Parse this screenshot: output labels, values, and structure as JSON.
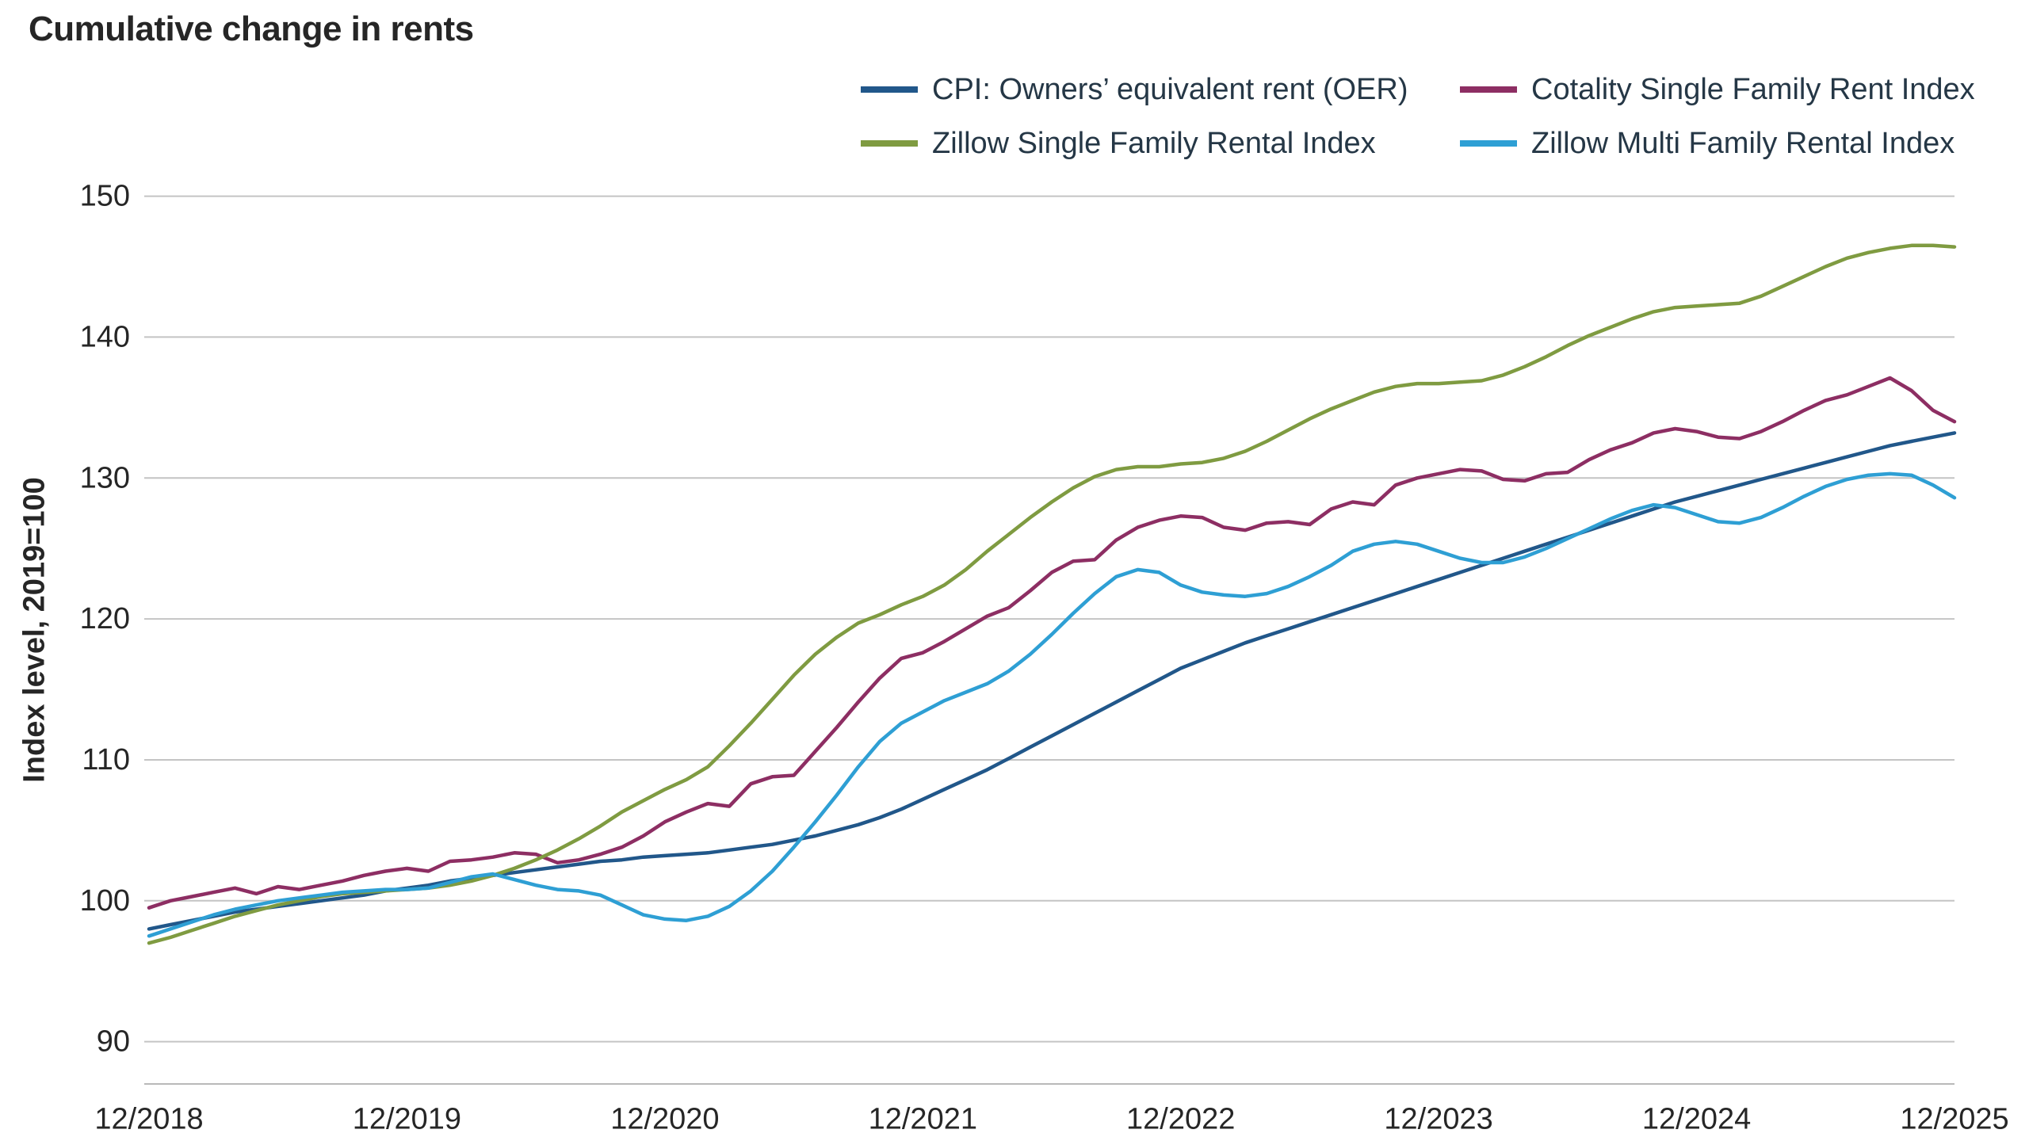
{
  "title": "Cumulative change in rents",
  "y_axis_label": "Index level, 2019=100",
  "colors": {
    "background": "#ffffff",
    "text": "#262626",
    "legend_text": "#253746",
    "grid": "#c4c4c4",
    "axis_line": "#b9b9b9",
    "oer_line": "#21578a",
    "cotality_line": "#8d2e63",
    "zillow_sfr_line": "#7f9b41",
    "zillow_mfr_line": "#2e9fd4"
  },
  "chart_data": {
    "type": "line",
    "title": "Cumulative change in rents",
    "xlabel": "",
    "ylabel": "Index level, 2019=100",
    "ylim": [
      90,
      150
    ],
    "y_ticks": [
      90,
      100,
      110,
      120,
      130,
      140,
      150
    ],
    "x_tick_labels": [
      "12/2018",
      "12/2019",
      "12/2020",
      "12/2021",
      "12/2022",
      "12/2023",
      "12/2024",
      "12/2025"
    ],
    "x_unit": "month",
    "x_start": "12/2018",
    "x_end": "12/2025",
    "grid": "horizontal",
    "legend_position": "top-right-two-columns",
    "series": [
      {
        "name": "CPI: Owners’ equivalent rent (OER)",
        "color": "#21578a",
        "values": [
          98.0,
          98.3,
          98.6,
          98.9,
          99.2,
          99.4,
          99.6,
          99.8,
          100.0,
          100.2,
          100.4,
          100.7,
          100.9,
          101.1,
          101.4,
          101.6,
          101.8,
          102.0,
          102.2,
          102.4,
          102.6,
          102.8,
          102.9,
          103.1,
          103.2,
          103.3,
          103.4,
          103.6,
          103.8,
          104.0,
          104.3,
          104.6,
          105.0,
          105.4,
          105.9,
          106.5,
          107.2,
          107.9,
          108.6,
          109.3,
          110.1,
          110.9,
          111.7,
          112.5,
          113.3,
          114.1,
          114.9,
          115.7,
          116.5,
          117.1,
          117.7,
          118.3,
          118.8,
          119.3,
          119.8,
          120.3,
          120.8,
          121.3,
          121.8,
          122.3,
          122.8,
          123.3,
          123.8,
          124.3,
          124.8,
          125.3,
          125.8,
          126.3,
          126.8,
          127.3,
          127.8,
          128.3,
          128.7,
          129.1,
          129.5,
          129.9,
          130.3,
          130.7,
          131.1,
          131.5,
          131.9,
          132.3,
          132.6,
          132.9,
          133.2
        ]
      },
      {
        "name": "Cotality Single Family Rent Index",
        "color": "#8d2e63",
        "values": [
          99.5,
          100.0,
          100.3,
          100.6,
          100.9,
          100.5,
          101.0,
          100.8,
          101.1,
          101.4,
          101.8,
          102.1,
          102.3,
          102.1,
          102.8,
          102.9,
          103.1,
          103.4,
          103.3,
          102.7,
          102.9,
          103.3,
          103.8,
          104.6,
          105.6,
          106.3,
          106.9,
          106.7,
          108.3,
          108.8,
          108.9,
          110.6,
          112.3,
          114.1,
          115.8,
          117.2,
          117.6,
          118.4,
          119.3,
          120.2,
          120.8,
          122.0,
          123.3,
          124.1,
          124.2,
          125.6,
          126.5,
          127.0,
          127.3,
          127.2,
          126.5,
          126.3,
          126.8,
          126.9,
          126.7,
          127.8,
          128.3,
          128.1,
          129.5,
          130.0,
          130.3,
          130.6,
          130.5,
          129.9,
          129.8,
          130.3,
          130.4,
          131.3,
          132.0,
          132.5,
          133.2,
          133.5,
          133.3,
          132.9,
          132.8,
          133.3,
          134.0,
          134.8,
          135.5,
          135.9,
          136.5,
          137.1,
          136.2,
          134.8,
          134.0
        ]
      },
      {
        "name": "Zillow Single Family Rental Index",
        "color": "#7f9b41",
        "values": [
          97.0,
          97.4,
          97.9,
          98.4,
          98.9,
          99.3,
          99.7,
          100.0,
          100.3,
          100.5,
          100.6,
          100.7,
          100.8,
          100.9,
          101.1,
          101.4,
          101.8,
          102.3,
          102.9,
          103.6,
          104.4,
          105.3,
          106.3,
          107.1,
          107.9,
          108.6,
          109.5,
          111.0,
          112.6,
          114.3,
          116.0,
          117.5,
          118.7,
          119.7,
          120.3,
          121.0,
          121.6,
          122.4,
          123.5,
          124.8,
          126.0,
          127.2,
          128.3,
          129.3,
          130.1,
          130.6,
          130.8,
          130.8,
          131.0,
          131.1,
          131.4,
          131.9,
          132.6,
          133.4,
          134.2,
          134.9,
          135.5,
          136.1,
          136.5,
          136.7,
          136.7,
          136.8,
          136.9,
          137.3,
          137.9,
          138.6,
          139.4,
          140.1,
          140.7,
          141.3,
          141.8,
          142.1,
          142.2,
          142.3,
          142.4,
          142.9,
          143.6,
          144.3,
          145.0,
          145.6,
          146.0,
          146.3,
          146.5,
          146.5,
          146.4
        ]
      },
      {
        "name": "Zillow Multi Family Rental Index",
        "color": "#2e9fd4",
        "values": [
          97.5,
          98.0,
          98.5,
          99.0,
          99.4,
          99.7,
          100.0,
          100.2,
          100.4,
          100.6,
          100.7,
          100.8,
          100.8,
          100.9,
          101.3,
          101.7,
          101.9,
          101.5,
          101.1,
          100.8,
          100.7,
          100.4,
          99.7,
          99.0,
          98.7,
          98.6,
          98.9,
          99.6,
          100.7,
          102.1,
          103.8,
          105.6,
          107.5,
          109.5,
          111.3,
          112.6,
          113.4,
          114.2,
          114.8,
          115.4,
          116.3,
          117.5,
          118.9,
          120.4,
          121.8,
          123.0,
          123.5,
          123.3,
          122.4,
          121.9,
          121.7,
          121.6,
          121.8,
          122.3,
          123.0,
          123.8,
          124.8,
          125.3,
          125.5,
          125.3,
          124.8,
          124.3,
          124.0,
          124.0,
          124.4,
          125.0,
          125.7,
          126.4,
          127.1,
          127.7,
          128.1,
          127.9,
          127.4,
          126.9,
          126.8,
          127.2,
          127.9,
          128.7,
          129.4,
          129.9,
          130.2,
          130.3,
          130.2,
          129.5,
          128.6
        ]
      }
    ]
  }
}
